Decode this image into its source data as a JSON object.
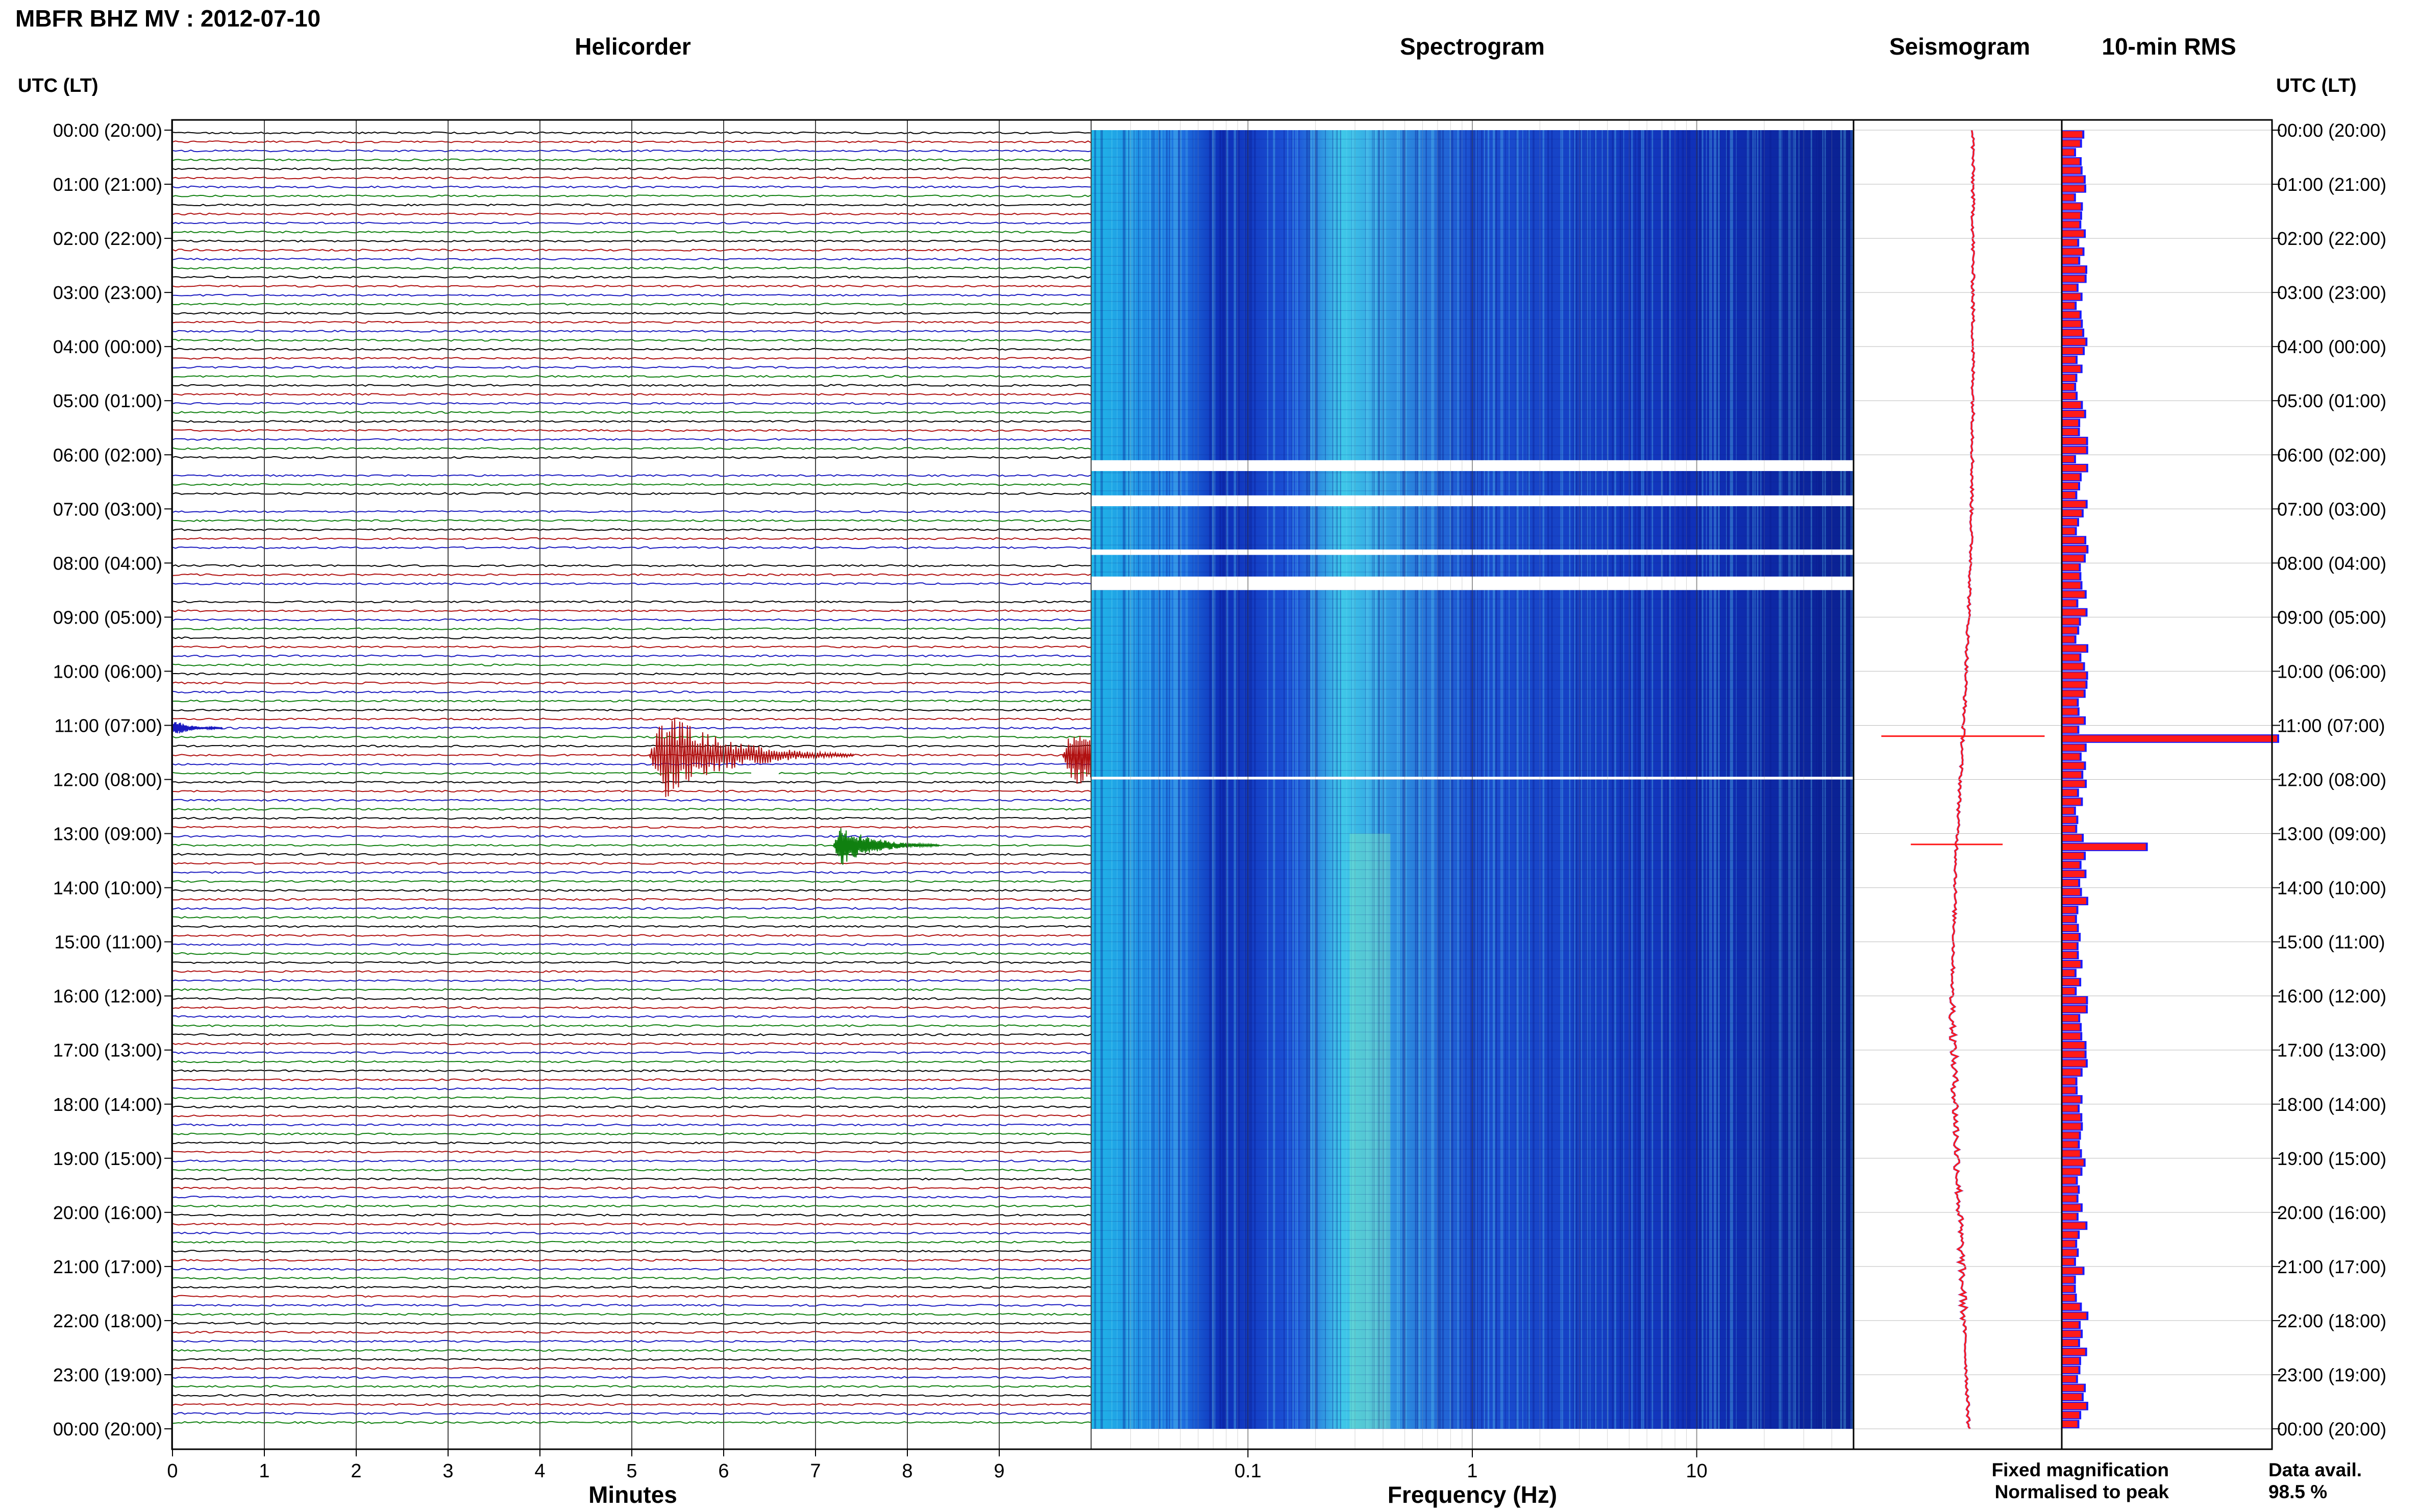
{
  "header": {
    "station_title": "MBFR BHZ MV : 2012-07-10",
    "utc_lt_label_left": "UTC (LT)",
    "utc_lt_label_right": "UTC (LT)"
  },
  "panels": {
    "helicorder": {
      "title": "Helicorder",
      "xlabel": "Minutes"
    },
    "spectrogram": {
      "title": "Spectrogram",
      "xlabel": "Frequency (Hz)"
    },
    "seismogram": {
      "title": "Seismogram"
    },
    "rms": {
      "title": "10-min RMS"
    }
  },
  "legend": {
    "fixed_magnification": "Fixed magnification",
    "normalised_to_peak": "Normalised to peak",
    "fixed_color": "#1a1aff",
    "normalised_color": "#ff1a1a"
  },
  "availability": {
    "label": "Data avail.",
    "value": "98.5 %"
  },
  "colors": {
    "trace_black": "#000000",
    "trace_red": "#b01010",
    "trace_blue": "#1a1ac0",
    "trace_green": "#108010",
    "spec_low": "#0a2a9e",
    "spec_mid": "#2a7ae8",
    "spec_high": "#7ef0a0"
  },
  "chart_data": [
    {
      "type": "line",
      "panel": "helicorder",
      "title": "Helicorder",
      "xlabel": "Minutes",
      "ylabel": "UTC (LT)",
      "x_ticks": [
        "0",
        "1",
        "2",
        "3",
        "4",
        "5",
        "6",
        "7",
        "8",
        "9"
      ],
      "xlim": [
        0,
        10
      ],
      "y_ticks": [
        "00:00 (20:00)",
        "01:00 (21:00)",
        "02:00 (22:00)",
        "03:00 (23:00)",
        "04:00 (00:00)",
        "05:00 (01:00)",
        "06:00 (02:00)",
        "07:00 (03:00)",
        "08:00 (04:00)",
        "09:00 (05:00)",
        "10:00 (06:00)",
        "11:00 (07:00)",
        "12:00 (08:00)",
        "13:00 (09:00)",
        "14:00 (10:00)",
        "15:00 (11:00)",
        "16:00 (12:00)",
        "17:00 (13:00)",
        "18:00 (14:00)",
        "19:00 (15:00)",
        "20:00 (16:00)",
        "21:00 (17:00)",
        "22:00 (18:00)",
        "23:00 (19:00)",
        "00:00 (20:00)"
      ],
      "rows": 144,
      "trace_colors": [
        "#000000",
        "#b01010",
        "#1a1ac0",
        "#108010"
      ],
      "events": [
        {
          "row": 66,
          "minute": 0.1,
          "amplitude": 0.5
        },
        {
          "row": 69,
          "minute": 5.3,
          "amplitude": 3.0
        },
        {
          "row": 69,
          "minute": 9.8,
          "amplitude": 2.2
        },
        {
          "row": 79,
          "minute": 7.3,
          "amplitude": 1.4
        }
      ],
      "gaps": [
        {
          "row": 37,
          "from_minute": 0,
          "to_minute": 10
        },
        {
          "row": 41,
          "from_minute": 0,
          "to_minute": 10
        },
        {
          "row": 47,
          "from_minute": 0,
          "to_minute": 10
        },
        {
          "row": 51,
          "from_minute": 0,
          "to_minute": 10
        },
        {
          "row": 71,
          "from_minute": 6.3,
          "to_minute": 6.6
        }
      ]
    },
    {
      "type": "heatmap",
      "panel": "spectrogram",
      "title": "Spectrogram",
      "xlabel": "Frequency (Hz)",
      "x_scale": "log",
      "xlim": [
        0.02,
        50
      ],
      "x_ticks": [
        "0.1",
        "1",
        "10"
      ],
      "peak_frequency_hz": 0.35,
      "gap_bands": [
        {
          "from_hour": 6.1,
          "to_hour": 6.3
        },
        {
          "from_hour": 6.75,
          "to_hour": 6.95
        },
        {
          "from_hour": 7.75,
          "to_hour": 7.85
        },
        {
          "from_hour": 8.25,
          "to_hour": 8.5
        },
        {
          "from_hour": 11.95,
          "to_hour": 12.0
        }
      ]
    },
    {
      "type": "line",
      "panel": "seismogram",
      "title": "Seismogram",
      "events_hour": [
        11.2,
        13.2
      ],
      "baseline_x": [
        0.5,
        0.5,
        0.5,
        0.49,
        0.46,
        0.42,
        0.4,
        0.42,
        0.45,
        0.48
      ]
    },
    {
      "type": "bar",
      "panel": "rms",
      "title": "10-min RMS",
      "orientation": "horizontal",
      "bins": 144,
      "series": [
        {
          "name": "Fixed magnification",
          "color": "#1a1aff"
        },
        {
          "name": "Normalised to peak",
          "color": "#ff1a1a"
        }
      ],
      "spikes": [
        {
          "bin": 67,
          "value": 1.0
        },
        {
          "bin": 79,
          "value": 0.39
        }
      ],
      "typical_value": 0.1
    }
  ]
}
